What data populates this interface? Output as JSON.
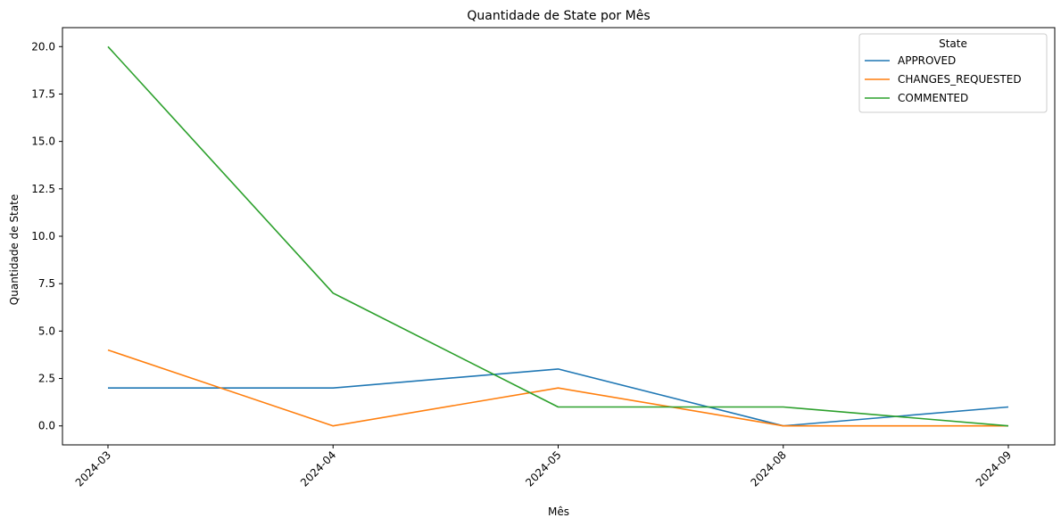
{
  "chart_data": {
    "type": "line",
    "title": "Quantidade de State por Mês",
    "xlabel": "Mês",
    "ylabel": "Quantidade de State",
    "categories": [
      "2024-03",
      "2024-04",
      "2024-05",
      "2024-08",
      "2024-09"
    ],
    "ylim": [
      -1,
      21
    ],
    "yticks": [
      "0.0",
      "2.5",
      "5.0",
      "7.5",
      "10.0",
      "12.5",
      "15.0",
      "17.5",
      "20.0"
    ],
    "grid": false,
    "legend": {
      "title": "State",
      "placement": "top-right"
    },
    "series": [
      {
        "name": "APPROVED",
        "color": "#1f77b4",
        "values": [
          2,
          2,
          3,
          0,
          1
        ]
      },
      {
        "name": "CHANGES_REQUESTED",
        "color": "#ff7f0e",
        "values": [
          4,
          0,
          2,
          0,
          0
        ]
      },
      {
        "name": "COMMENTED",
        "color": "#2ca02c",
        "values": [
          20,
          7,
          1,
          1,
          0
        ]
      }
    ]
  }
}
